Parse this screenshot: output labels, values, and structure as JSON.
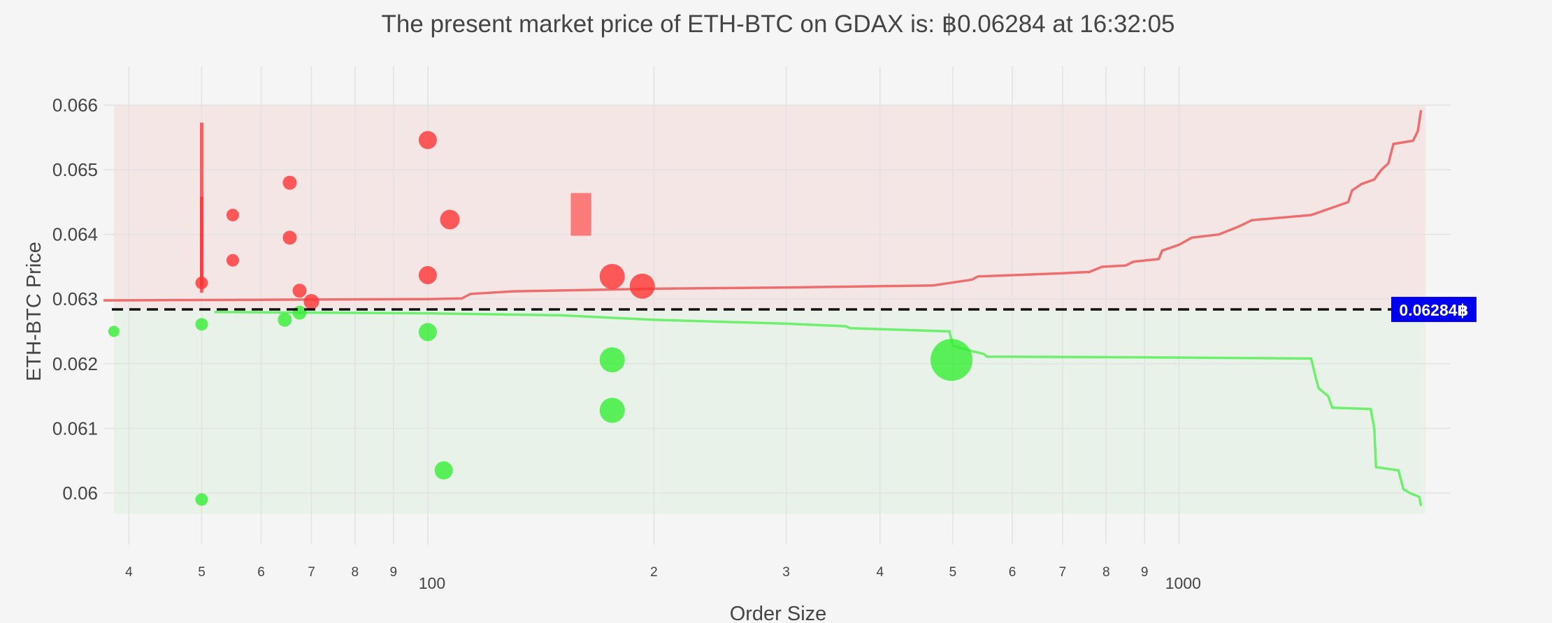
{
  "chart_data": {
    "type": "scatter",
    "title": "The present market price of ETH-BTC on GDAX is: ฿0.06284 at 16:32:05",
    "xlabel": "Order Size",
    "ylabel": "ETH-BTC Price",
    "xscale": "log",
    "xlim": [
      37,
      2300
    ],
    "ylim": [
      0.0592,
      0.0666
    ],
    "grid": true,
    "legend": "none",
    "colors": {
      "ask": "#ff3333",
      "bid": "#33ee33",
      "ask_line": "#ee6e6e",
      "bid_line": "#6ef06e",
      "ask_band": "#f5e6e6",
      "bid_band": "#e8f2e8",
      "price_box": "#0000ee",
      "grid": "#e2e2e2",
      "text": "#444444",
      "background": "#f5f5f5"
    },
    "y_ticks": [
      {
        "value": 0.06,
        "label": "0.06"
      },
      {
        "value": 0.061,
        "label": "0.061"
      },
      {
        "value": 0.062,
        "label": "0.062"
      },
      {
        "value": 0.063,
        "label": "0.063"
      },
      {
        "value": 0.064,
        "label": "0.064"
      },
      {
        "value": 0.065,
        "label": "0.065"
      },
      {
        "value": 0.066,
        "label": "0.066"
      }
    ],
    "x_ticks": [
      {
        "value": 40,
        "label": "4"
      },
      {
        "value": 50,
        "label": "5"
      },
      {
        "value": 60,
        "label": "6"
      },
      {
        "value": 70,
        "label": "7"
      },
      {
        "value": 80,
        "label": "8"
      },
      {
        "value": 90,
        "label": "9"
      },
      {
        "value": 100,
        "label": "100",
        "decade": true
      },
      {
        "value": 200,
        "label": "2"
      },
      {
        "value": 300,
        "label": "3"
      },
      {
        "value": 400,
        "label": "4"
      },
      {
        "value": 500,
        "label": "5"
      },
      {
        "value": 600,
        "label": "6"
      },
      {
        "value": 700,
        "label": "7"
      },
      {
        "value": 800,
        "label": "8"
      },
      {
        "value": 900,
        "label": "9"
      },
      {
        "value": 1000,
        "label": "1000",
        "decade": true
      }
    ],
    "market_price": 0.06284,
    "market_price_label": "0.06284฿",
    "ask_band": {
      "x": [
        38.2,
        2130
      ],
      "y": [
        0.06284,
        0.066
      ]
    },
    "bid_band": {
      "x": [
        38.2,
        2130
      ],
      "y": [
        0.05968,
        0.06284
      ]
    },
    "ask_orders": [
      {
        "x": 50,
        "y": 0.06325,
        "size": 9
      },
      {
        "x": 55,
        "y": 0.0643,
        "size": 9
      },
      {
        "x": 55,
        "y": 0.0636,
        "size": 9
      },
      {
        "x": 65.5,
        "y": 0.0648,
        "size": 10
      },
      {
        "x": 65.5,
        "y": 0.06395,
        "size": 10
      },
      {
        "x": 67.5,
        "y": 0.06313,
        "size": 10
      },
      {
        "x": 70,
        "y": 0.06296,
        "size": 11
      },
      {
        "x": 100,
        "y": 0.06546,
        "size": 13
      },
      {
        "x": 100,
        "y": 0.06337,
        "size": 13
      },
      {
        "x": 107,
        "y": 0.06423,
        "size": 14
      },
      {
        "x": 176,
        "y": 0.06335,
        "size": 18
      },
      {
        "x": 193,
        "y": 0.0632,
        "size": 18
      }
    ],
    "ask_whale_bars": [
      {
        "x": 50,
        "y0": 0.0631,
        "y1": 0.06573
      },
      {
        "x": 50,
        "y0": 0.0632,
        "y1": 0.06458
      }
    ],
    "ask_box": {
      "x0": 155,
      "x1": 165,
      "y0": 0.06398,
      "y1": 0.06464
    },
    "bid_orders": [
      {
        "x": 38.2,
        "y": 0.0625,
        "size": 8
      },
      {
        "x": 50,
        "y": 0.06261,
        "size": 9
      },
      {
        "x": 64.5,
        "y": 0.06268,
        "size": 10
      },
      {
        "x": 67.5,
        "y": 0.06279,
        "size": 10
      },
      {
        "x": 100,
        "y": 0.06249,
        "size": 13
      },
      {
        "x": 176,
        "y": 0.06206,
        "size": 18
      },
      {
        "x": 176,
        "y": 0.06128,
        "size": 18
      },
      {
        "x": 105,
        "y": 0.06035,
        "size": 13
      },
      {
        "x": 50,
        "y": 0.0599,
        "size": 9
      },
      {
        "x": 498,
        "y": 0.06206,
        "size": 30
      }
    ],
    "ask_line": [
      [
        37,
        0.06298
      ],
      [
        60,
        0.06299
      ],
      [
        100,
        0.063
      ],
      [
        111,
        0.06301
      ],
      [
        114,
        0.06308
      ],
      [
        130,
        0.06312
      ],
      [
        200,
        0.06316
      ],
      [
        300,
        0.06318
      ],
      [
        400,
        0.0632
      ],
      [
        470,
        0.06321
      ],
      [
        530,
        0.0633
      ],
      [
        540,
        0.06335
      ],
      [
        600,
        0.06337
      ],
      [
        700,
        0.0634
      ],
      [
        760,
        0.06342
      ],
      [
        790,
        0.0635
      ],
      [
        850,
        0.06352
      ],
      [
        870,
        0.06358
      ],
      [
        940,
        0.06362
      ],
      [
        950,
        0.06375
      ],
      [
        1000,
        0.06384
      ],
      [
        1040,
        0.06395
      ],
      [
        1130,
        0.064
      ],
      [
        1200,
        0.06412
      ],
      [
        1250,
        0.06422
      ],
      [
        1500,
        0.0643
      ],
      [
        1680,
        0.0645
      ],
      [
        1700,
        0.06468
      ],
      [
        1750,
        0.06478
      ],
      [
        1820,
        0.06485
      ],
      [
        1860,
        0.065
      ],
      [
        1900,
        0.0651
      ],
      [
        1930,
        0.0654
      ],
      [
        2050,
        0.06545
      ],
      [
        2080,
        0.0656
      ],
      [
        2100,
        0.06592
      ]
    ],
    "bid_line": [
      [
        52,
        0.0628
      ],
      [
        100,
        0.06278
      ],
      [
        150,
        0.06275
      ],
      [
        200,
        0.06268
      ],
      [
        300,
        0.06262
      ],
      [
        360,
        0.06258
      ],
      [
        365,
        0.06255
      ],
      [
        495,
        0.0625
      ],
      [
        500,
        0.06228
      ],
      [
        520,
        0.06222
      ],
      [
        550,
        0.06215
      ],
      [
        555,
        0.06211
      ],
      [
        900,
        0.0621
      ],
      [
        1500,
        0.06208
      ],
      [
        1520,
        0.0618
      ],
      [
        1535,
        0.06162
      ],
      [
        1580,
        0.0615
      ],
      [
        1600,
        0.06132
      ],
      [
        1800,
        0.0613
      ],
      [
        1820,
        0.061
      ],
      [
        1830,
        0.0604
      ],
      [
        1960,
        0.06035
      ],
      [
        1990,
        0.06006
      ],
      [
        2030,
        0.06
      ],
      [
        2090,
        0.05994
      ],
      [
        2100,
        0.0598
      ]
    ]
  }
}
